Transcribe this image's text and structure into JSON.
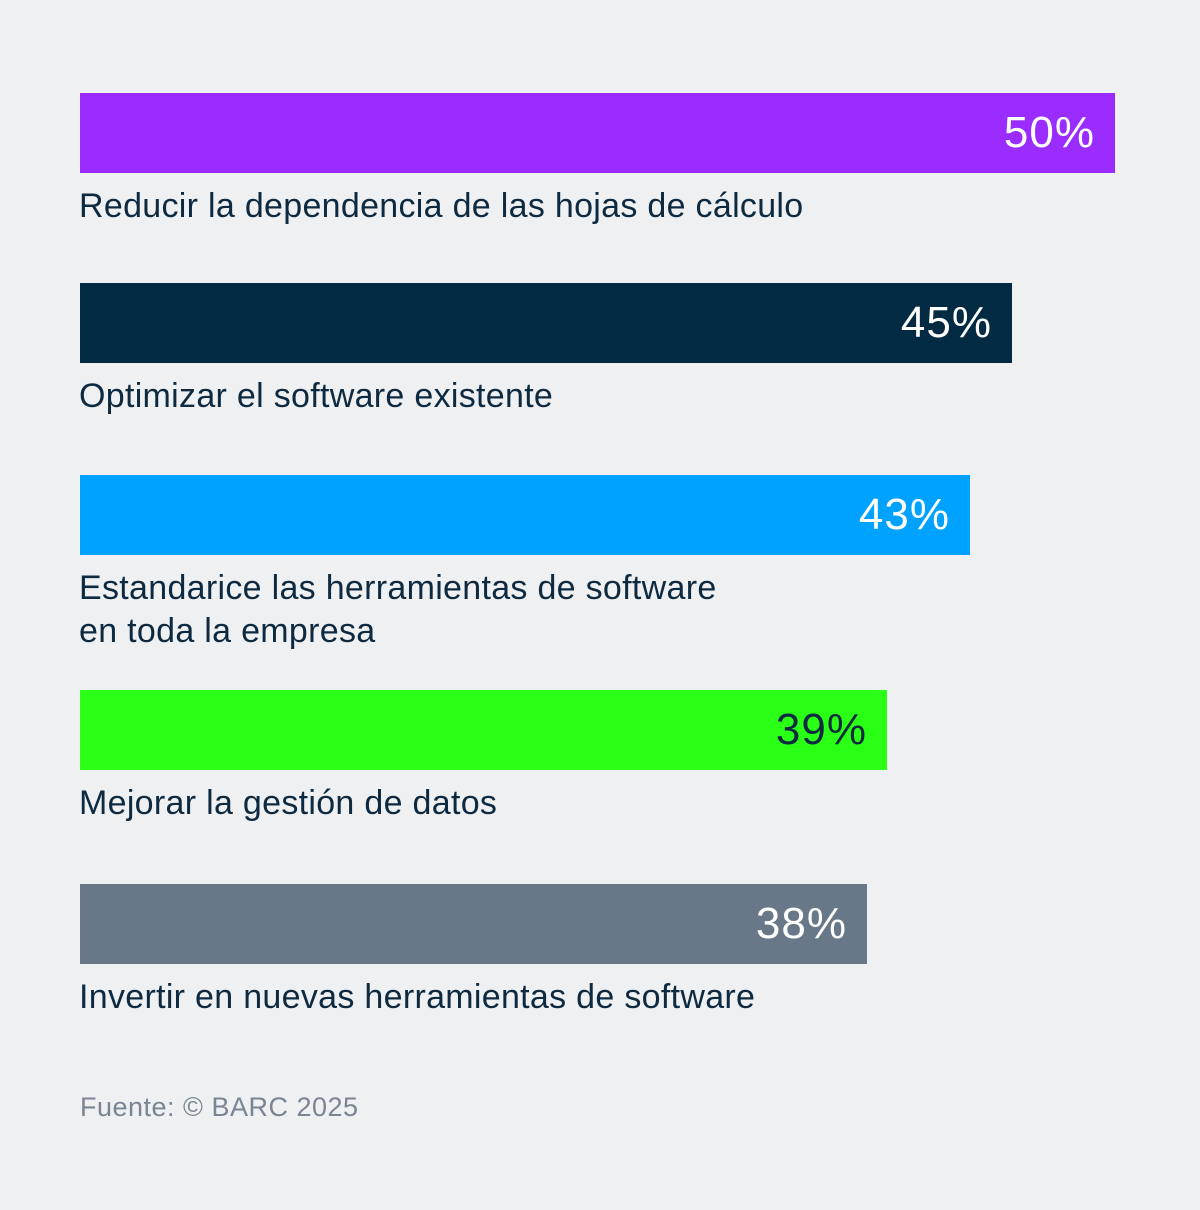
{
  "chart_data": {
    "type": "bar",
    "orientation": "horizontal",
    "categories": [
      "Reducir la dependencia de las hojas de cálculo",
      "Optimizar el software existente",
      "Estandarice las herramientas de software\nen toda la empresa",
      "Mejorar la gestión de datos",
      "Invertir en nuevas herramientas de software"
    ],
    "values": [
      50,
      45,
      43,
      39,
      38
    ],
    "value_labels": [
      "50%",
      "45%",
      "43%",
      "39%",
      "38%"
    ],
    "colors": [
      "#9b2cff",
      "#022a42",
      "#00a2ff",
      "#2aff16",
      "#687889"
    ],
    "value_label_colors": [
      "#ffffff",
      "#ffffff",
      "#ffffff",
      "#0e2a40",
      "#ffffff"
    ],
    "xlim": [
      0,
      50
    ],
    "title": "",
    "xlabel": "",
    "ylabel": ""
  },
  "source": "Fuente: © BARC 2025"
}
